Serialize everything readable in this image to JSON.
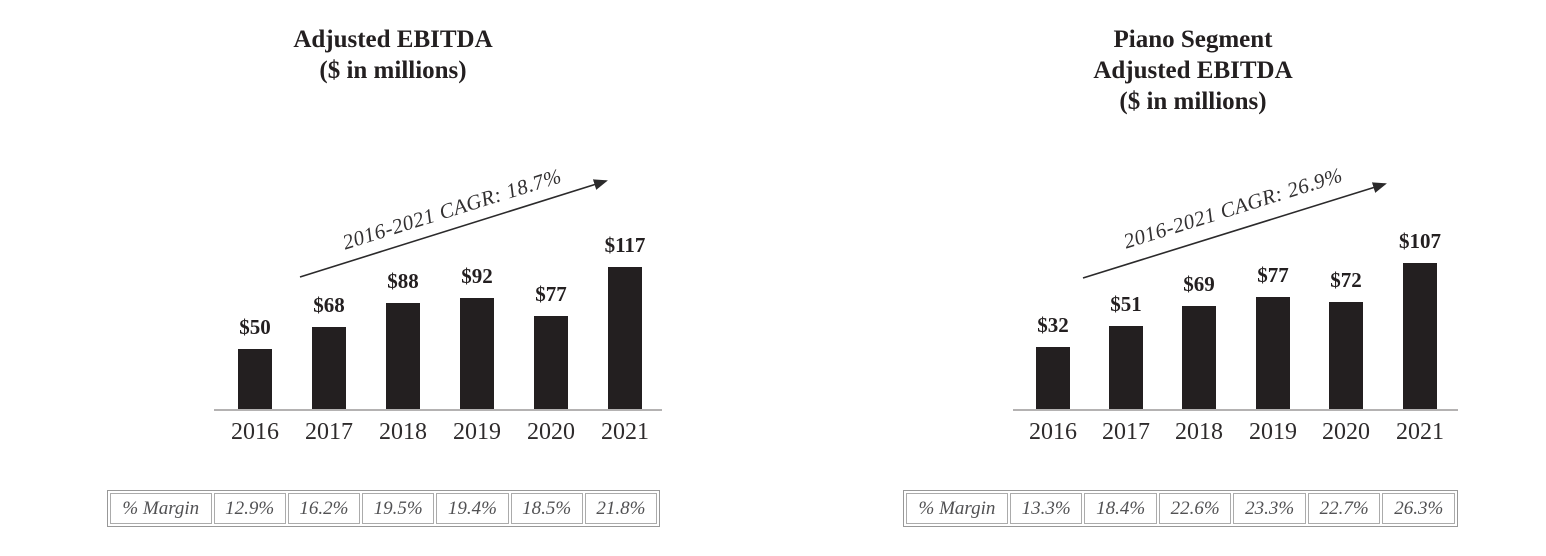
{
  "figure": {
    "name": "Adjusted EBITDA comparison figure"
  },
  "colors": {
    "background": "#ffffff",
    "bar": "#231f20",
    "ink": "#231f20",
    "year_text": "#2e2b2c",
    "cagr_text": "#323031",
    "axis_line": "#b4b2b2",
    "table_border": "#989898",
    "table_cell_border": "#ababab",
    "table_text": "#515153",
    "arrow": "#2b2a2b"
  },
  "chart_data": [
    {
      "type": "bar",
      "title_lines": [
        "Adjusted EBITDA",
        "($ in millions)"
      ],
      "title": "Adjusted EBITDA ($ in millions)",
      "categories": [
        "2016",
        "2017",
        "2018",
        "2019",
        "2020",
        "2021"
      ],
      "values": [
        50,
        68,
        88,
        92,
        77,
        117
      ],
      "bar_value_labels": [
        "$50",
        "$68",
        "$88",
        "$92",
        "$77",
        "$117"
      ],
      "annotation": "2016-2021 CAGR: 18.7%",
      "xlabel": "",
      "ylabel": "",
      "ylim": [
        0,
        125
      ],
      "grid": false,
      "legend": "none",
      "margin_row": {
        "header": "% Margin",
        "cells": [
          "12.9%",
          "16.2%",
          "19.5%",
          "19.4%",
          "18.5%",
          "21.8%"
        ]
      }
    },
    {
      "type": "bar",
      "title_lines": [
        "Piano Segment",
        "Adjusted EBITDA",
        "($ in millions)"
      ],
      "title": "Piano Segment Adjusted EBITDA ($ in millions)",
      "categories": [
        "2016",
        "2017",
        "2018",
        "2019",
        "2020",
        "2021"
      ],
      "values": [
        32,
        51,
        69,
        77,
        72,
        107
      ],
      "bar_value_labels": [
        "$32",
        "$51",
        "$69",
        "$77",
        "$72",
        "$107"
      ],
      "annotation": "2016-2021 CAGR: 26.9%",
      "xlabel": "",
      "ylabel": "",
      "ylim": [
        0,
        115
      ],
      "grid": false,
      "legend": "none",
      "margin_row": {
        "header": "% Margin",
        "cells": [
          "13.3%",
          "18.4%",
          "22.6%",
          "23.3%",
          "22.7%",
          "26.3%"
        ]
      }
    }
  ]
}
